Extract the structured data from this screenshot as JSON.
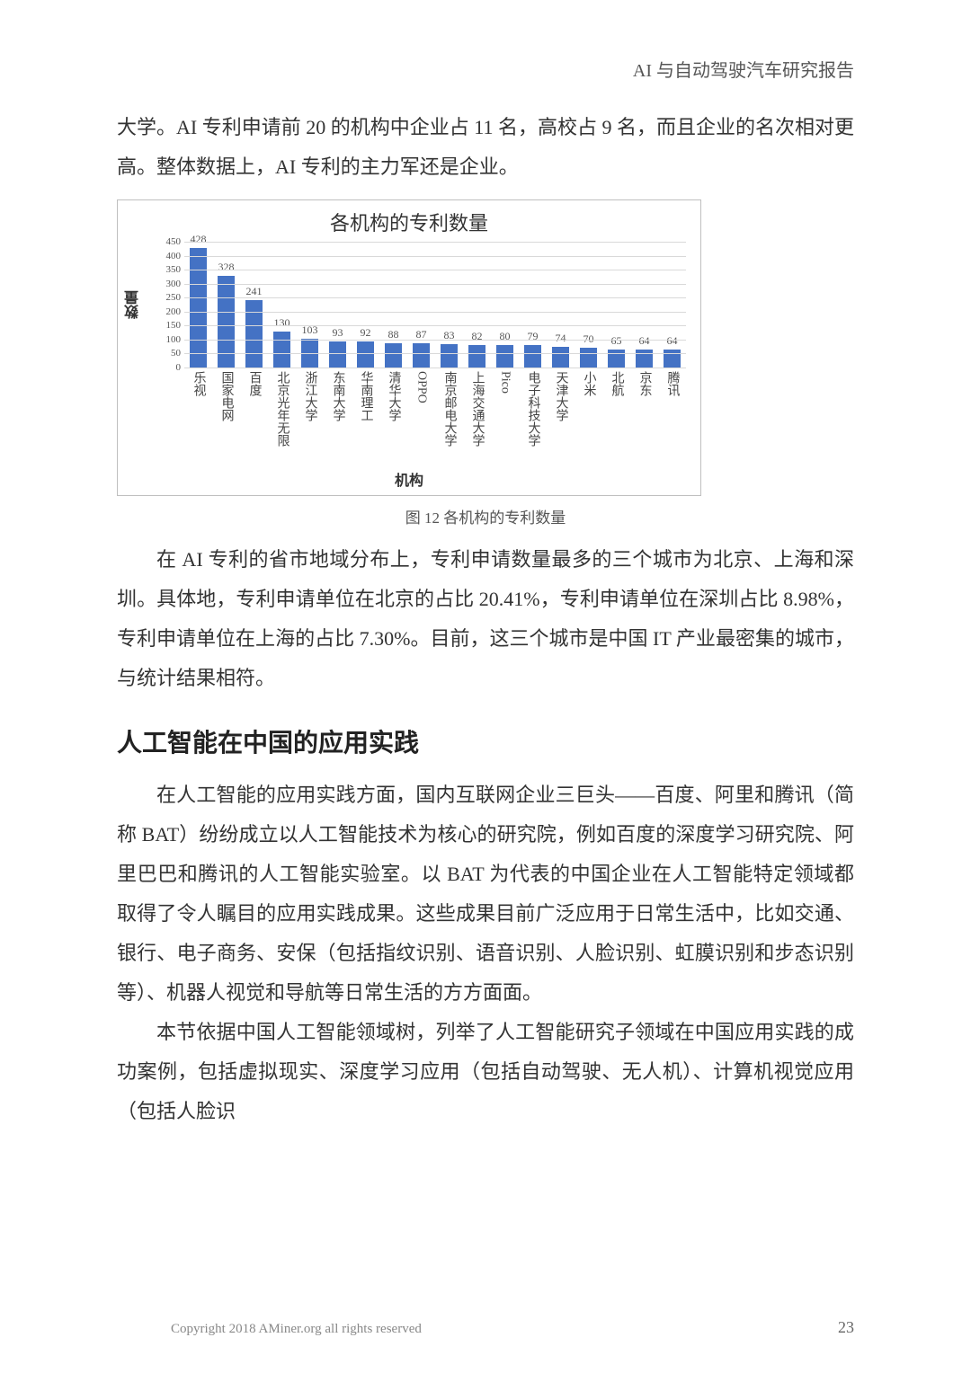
{
  "running_head": "AI 与自动驾驶汽车研究报告",
  "para1": "大学。AI 专利申请前 20 的机构中企业占 11 名，高校占 9 名，而且企业的名次相对更高。整体数据上，AI 专利的主力军还是企业。",
  "chart": {
    "type": "bar",
    "title": "各机构的专利数量",
    "ylabel": "数量",
    "xlabel": "机构",
    "ylim": [
      0,
      450
    ],
    "ytick_step": 50,
    "yticks": [
      0,
      50,
      100,
      150,
      200,
      250,
      300,
      350,
      400,
      450
    ],
    "categories": [
      "乐视",
      "国家电网",
      "百度",
      "北京光年无限",
      "浙江大学",
      "东南大学",
      "华南理工",
      "清华大学",
      "OPPO",
      "南京邮电大学",
      "上海交通大学",
      "Pico",
      "电子科技大学",
      "天津大学",
      "小米",
      "北航",
      "京东",
      "腾讯"
    ],
    "values": [
      428,
      328,
      241,
      130,
      103,
      93,
      92,
      88,
      87,
      83,
      82,
      80,
      79,
      74,
      70,
      65,
      64,
      64
    ],
    "bar_color": "#4472c4",
    "grid_color": "#d9d9d9",
    "background_color": "#ffffff",
    "border_color": "#bfbfbf",
    "title_fontsize": 22,
    "label_fontsize": 16,
    "tick_fontsize": 11,
    "value_fontsize": 12,
    "bar_width": 0.6
  },
  "caption": "图 12  各机构的专利数量",
  "para2": "在 AI 专利的省市地域分布上，专利申请数量最多的三个城市为北京、上海和深圳。具体地，专利申请单位在北京的占比 20.41%，专利申请单位在深圳占比 8.98%，专利申请单位在上海的占比 7.30%。目前，这三个城市是中国 IT 产业最密集的城市，与统计结果相符。",
  "h2": "人工智能在中国的应用实践",
  "para3": "在人工智能的应用实践方面，国内互联网企业三巨头——百度、阿里和腾讯（简称 BAT）纷纷成立以人工智能技术为核心的研究院，例如百度的深度学习研究院、阿里巴巴和腾讯的人工智能实验室。以 BAT 为代表的中国企业在人工智能特定领域都取得了令人瞩目的应用实践成果。这些成果目前广泛应用于日常生活中，比如交通、银行、电子商务、安保（包括指纹识别、语音识别、人脸识别、虹膜识别和步态识别等）、机器人视觉和导航等日常生活的方方面面。",
  "para4": "本节依据中国人工智能领域树，列举了人工智能研究子领域在中国应用实践的成功案例，包括虚拟现实、深度学习应用（包括自动驾驶、无人机）、计算机视觉应用（包括人脸识",
  "footer": "Copyright 2018 AMiner.org all rights reserved",
  "page_number": "23"
}
